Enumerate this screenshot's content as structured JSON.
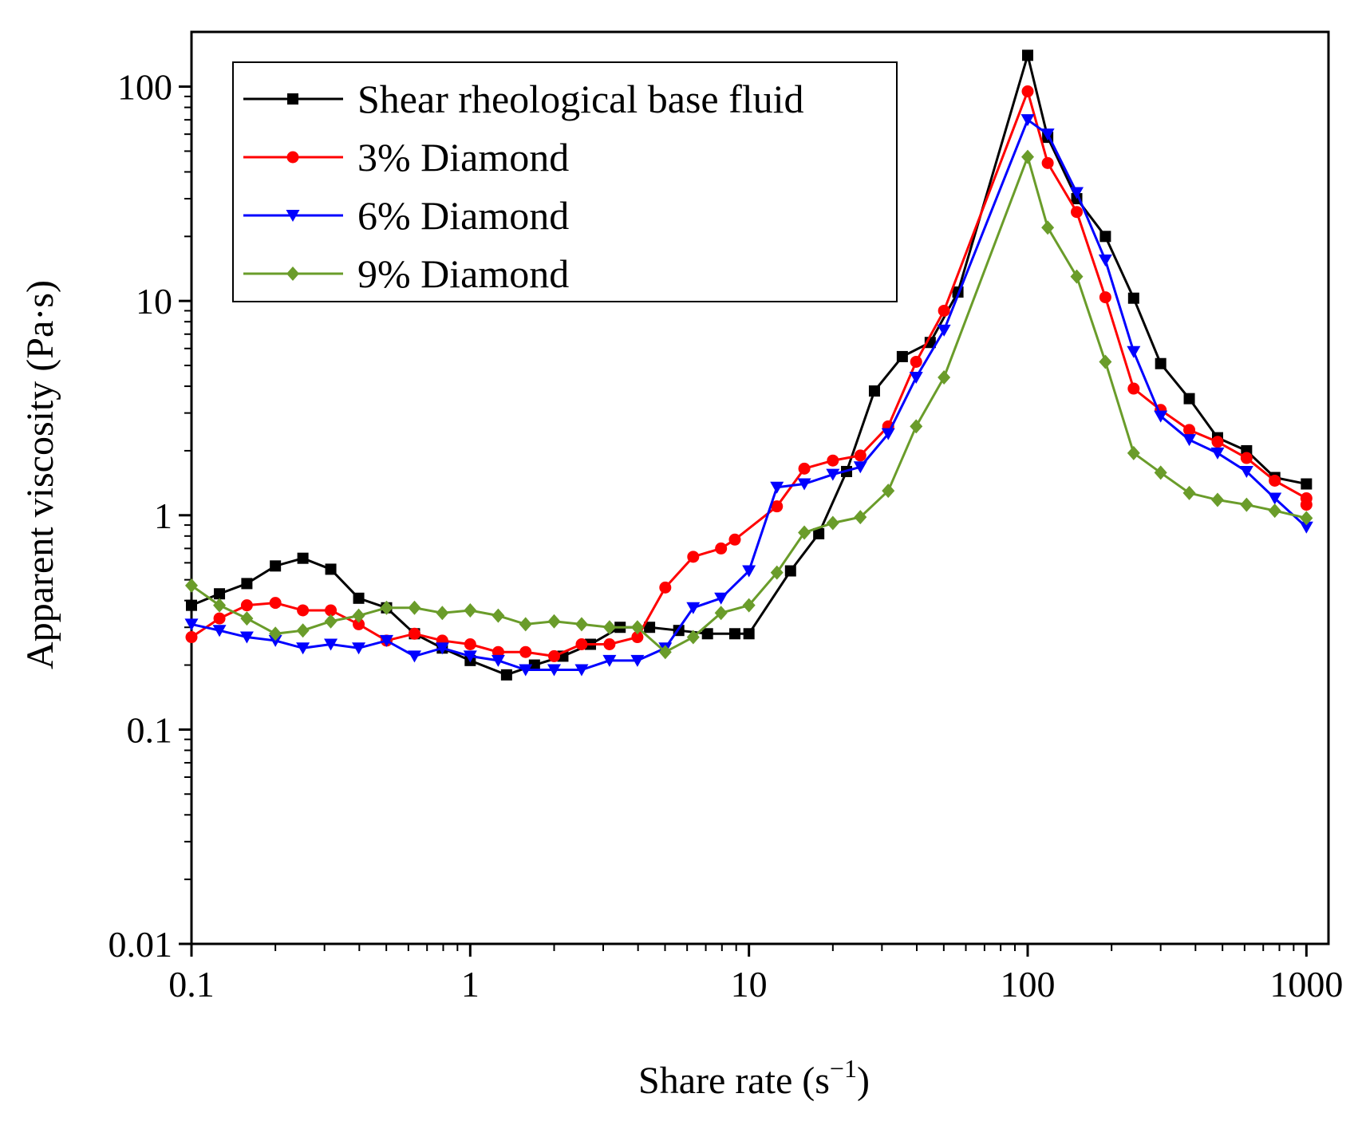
{
  "chart_data": {
    "type": "line",
    "title": "",
    "xlabel": "Share rate (s",
    "xlabel_sup": "−1",
    "xlabel_close": ")",
    "ylabel": "Apparent viscosity (Pa·s)",
    "xscale": "log",
    "yscale": "log",
    "xlim": [
      0.1,
      1200
    ],
    "ylim": [
      0.01,
      180
    ],
    "xticks": [
      0.1,
      1,
      10,
      100,
      1000
    ],
    "xtick_labels": [
      "0.1",
      "1",
      "10",
      "100",
      "1000"
    ],
    "yticks": [
      0.01,
      0.1,
      1,
      10,
      100
    ],
    "ytick_labels": [
      "0.01",
      "0.1",
      "1",
      "10",
      "100"
    ],
    "legend_position": "top-left",
    "x": [
      0.1,
      0.126,
      0.158,
      0.2,
      0.251,
      0.316,
      0.398,
      0.501,
      0.631,
      0.794,
      1,
      1.26,
      1.58,
      2,
      2.51,
      3.16,
      3.98,
      5.01,
      6.31,
      7.94,
      10,
      12.6,
      15.8,
      20,
      25.1,
      31.6,
      39.8,
      50.1,
      63.1,
      79.4,
      100,
      126,
      158,
      200,
      251,
      316,
      398,
      501,
      631,
      794,
      1000
    ],
    "series": [
      {
        "name": "Shear rheological base fluid",
        "color": "#000000",
        "marker": "square",
        "points": [
          [
            0.1,
            0.38
          ],
          [
            0.126,
            0.43
          ],
          [
            0.158,
            0.48
          ],
          [
            0.2,
            0.58
          ],
          [
            0.251,
            0.63
          ],
          [
            0.316,
            0.56
          ],
          [
            0.398,
            0.41
          ],
          [
            0.501,
            0.37
          ],
          [
            0.631,
            0.28
          ],
          [
            0.794,
            0.24
          ],
          [
            1,
            0.21
          ],
          [
            1.35,
            0.18
          ],
          [
            1.7,
            0.2
          ],
          [
            2.15,
            0.22
          ],
          [
            2.7,
            0.25
          ],
          [
            3.45,
            0.3
          ],
          [
            4.4,
            0.3
          ],
          [
            5.6,
            0.29
          ],
          [
            7.1,
            0.28
          ],
          [
            8.9,
            0.28
          ],
          [
            10,
            0.28
          ],
          [
            14.1,
            0.55
          ],
          [
            17.8,
            0.82
          ],
          [
            22.4,
            1.6
          ],
          [
            28.2,
            3.8
          ],
          [
            35.5,
            5.5
          ],
          [
            44.7,
            6.4
          ],
          [
            56.2,
            11
          ],
          [
            100,
            140
          ],
          [
            118,
            58
          ],
          [
            150,
            30
          ],
          [
            190,
            20
          ],
          [
            240,
            10.3
          ],
          [
            300,
            5.1
          ],
          [
            380,
            3.5
          ],
          [
            480,
            2.3
          ],
          [
            610,
            2.0
          ],
          [
            770,
            1.5
          ],
          [
            1000,
            1.4
          ]
        ]
      },
      {
        "name": "3% Diamond",
        "color": "#ff0000",
        "marker": "circle",
        "points": [
          [
            0.1,
            0.27
          ],
          [
            0.126,
            0.33
          ],
          [
            0.158,
            0.38
          ],
          [
            0.2,
            0.39
          ],
          [
            0.251,
            0.36
          ],
          [
            0.316,
            0.36
          ],
          [
            0.398,
            0.31
          ],
          [
            0.501,
            0.26
          ],
          [
            0.631,
            0.28
          ],
          [
            0.794,
            0.26
          ],
          [
            1,
            0.25
          ],
          [
            1.26,
            0.23
          ],
          [
            1.58,
            0.23
          ],
          [
            2,
            0.22
          ],
          [
            2.51,
            0.25
          ],
          [
            3.16,
            0.25
          ],
          [
            3.98,
            0.27
          ],
          [
            5.01,
            0.46
          ],
          [
            6.31,
            0.64
          ],
          [
            7.94,
            0.7
          ],
          [
            8.9,
            0.77
          ],
          [
            12.6,
            1.1
          ],
          [
            15.8,
            1.65
          ],
          [
            20,
            1.8
          ],
          [
            25.1,
            1.9
          ],
          [
            31.6,
            2.6
          ],
          [
            39.8,
            5.2
          ],
          [
            50.1,
            9
          ],
          [
            100,
            95
          ],
          [
            118,
            44
          ],
          [
            150,
            26
          ],
          [
            190,
            10.4
          ],
          [
            240,
            3.9
          ],
          [
            300,
            3.1
          ],
          [
            380,
            2.5
          ],
          [
            480,
            2.2
          ],
          [
            610,
            1.85
          ],
          [
            770,
            1.45
          ],
          [
            1000,
            1.2
          ],
          [
            1000,
            1.12
          ]
        ]
      },
      {
        "name": "6% Diamond",
        "color": "#0000ff",
        "marker": "triangle-down",
        "points": [
          [
            0.1,
            0.31
          ],
          [
            0.126,
            0.29
          ],
          [
            0.158,
            0.27
          ],
          [
            0.2,
            0.26
          ],
          [
            0.251,
            0.24
          ],
          [
            0.316,
            0.25
          ],
          [
            0.398,
            0.24
          ],
          [
            0.501,
            0.26
          ],
          [
            0.631,
            0.22
          ],
          [
            0.794,
            0.24
          ],
          [
            1,
            0.22
          ],
          [
            1.26,
            0.21
          ],
          [
            1.58,
            0.19
          ],
          [
            2,
            0.19
          ],
          [
            2.51,
            0.19
          ],
          [
            3.16,
            0.21
          ],
          [
            3.98,
            0.21
          ],
          [
            5.01,
            0.24
          ],
          [
            6.31,
            0.37
          ],
          [
            7.94,
            0.41
          ],
          [
            10,
            0.55
          ],
          [
            12.6,
            1.35
          ],
          [
            15.8,
            1.4
          ],
          [
            20,
            1.55
          ],
          [
            25.1,
            1.68
          ],
          [
            31.6,
            2.4
          ],
          [
            39.8,
            4.4
          ],
          [
            50.1,
            7.3
          ],
          [
            100,
            70
          ],
          [
            118,
            60
          ],
          [
            150,
            32
          ],
          [
            190,
            15.5
          ],
          [
            240,
            5.8
          ],
          [
            300,
            2.9
          ],
          [
            380,
            2.25
          ],
          [
            480,
            1.95
          ],
          [
            610,
            1.6
          ],
          [
            770,
            1.2
          ],
          [
            1000,
            0.88
          ]
        ]
      },
      {
        "name": "9% Diamond",
        "color": "#6a9c2a",
        "marker": "diamond",
        "points": [
          [
            0.1,
            0.47
          ],
          [
            0.126,
            0.38
          ],
          [
            0.158,
            0.33
          ],
          [
            0.2,
            0.28
          ],
          [
            0.251,
            0.29
          ],
          [
            0.316,
            0.32
          ],
          [
            0.398,
            0.34
          ],
          [
            0.501,
            0.37
          ],
          [
            0.631,
            0.37
          ],
          [
            0.794,
            0.35
          ],
          [
            1,
            0.36
          ],
          [
            1.26,
            0.34
          ],
          [
            1.58,
            0.31
          ],
          [
            2,
            0.32
          ],
          [
            2.51,
            0.31
          ],
          [
            3.16,
            0.3
          ],
          [
            3.98,
            0.3
          ],
          [
            5.01,
            0.23
          ],
          [
            6.31,
            0.27
          ],
          [
            7.94,
            0.35
          ],
          [
            10,
            0.38
          ],
          [
            12.6,
            0.54
          ],
          [
            15.8,
            0.83
          ],
          [
            20,
            0.92
          ],
          [
            25.1,
            0.98
          ],
          [
            31.6,
            1.3
          ],
          [
            39.8,
            2.6
          ],
          [
            50.1,
            4.4
          ],
          [
            100,
            47
          ],
          [
            118,
            22
          ],
          [
            150,
            13
          ],
          [
            190,
            5.2
          ],
          [
            240,
            1.95
          ],
          [
            300,
            1.58
          ],
          [
            380,
            1.27
          ],
          [
            480,
            1.18
          ],
          [
            610,
            1.12
          ],
          [
            770,
            1.05
          ],
          [
            1000,
            0.97
          ]
        ]
      }
    ]
  }
}
